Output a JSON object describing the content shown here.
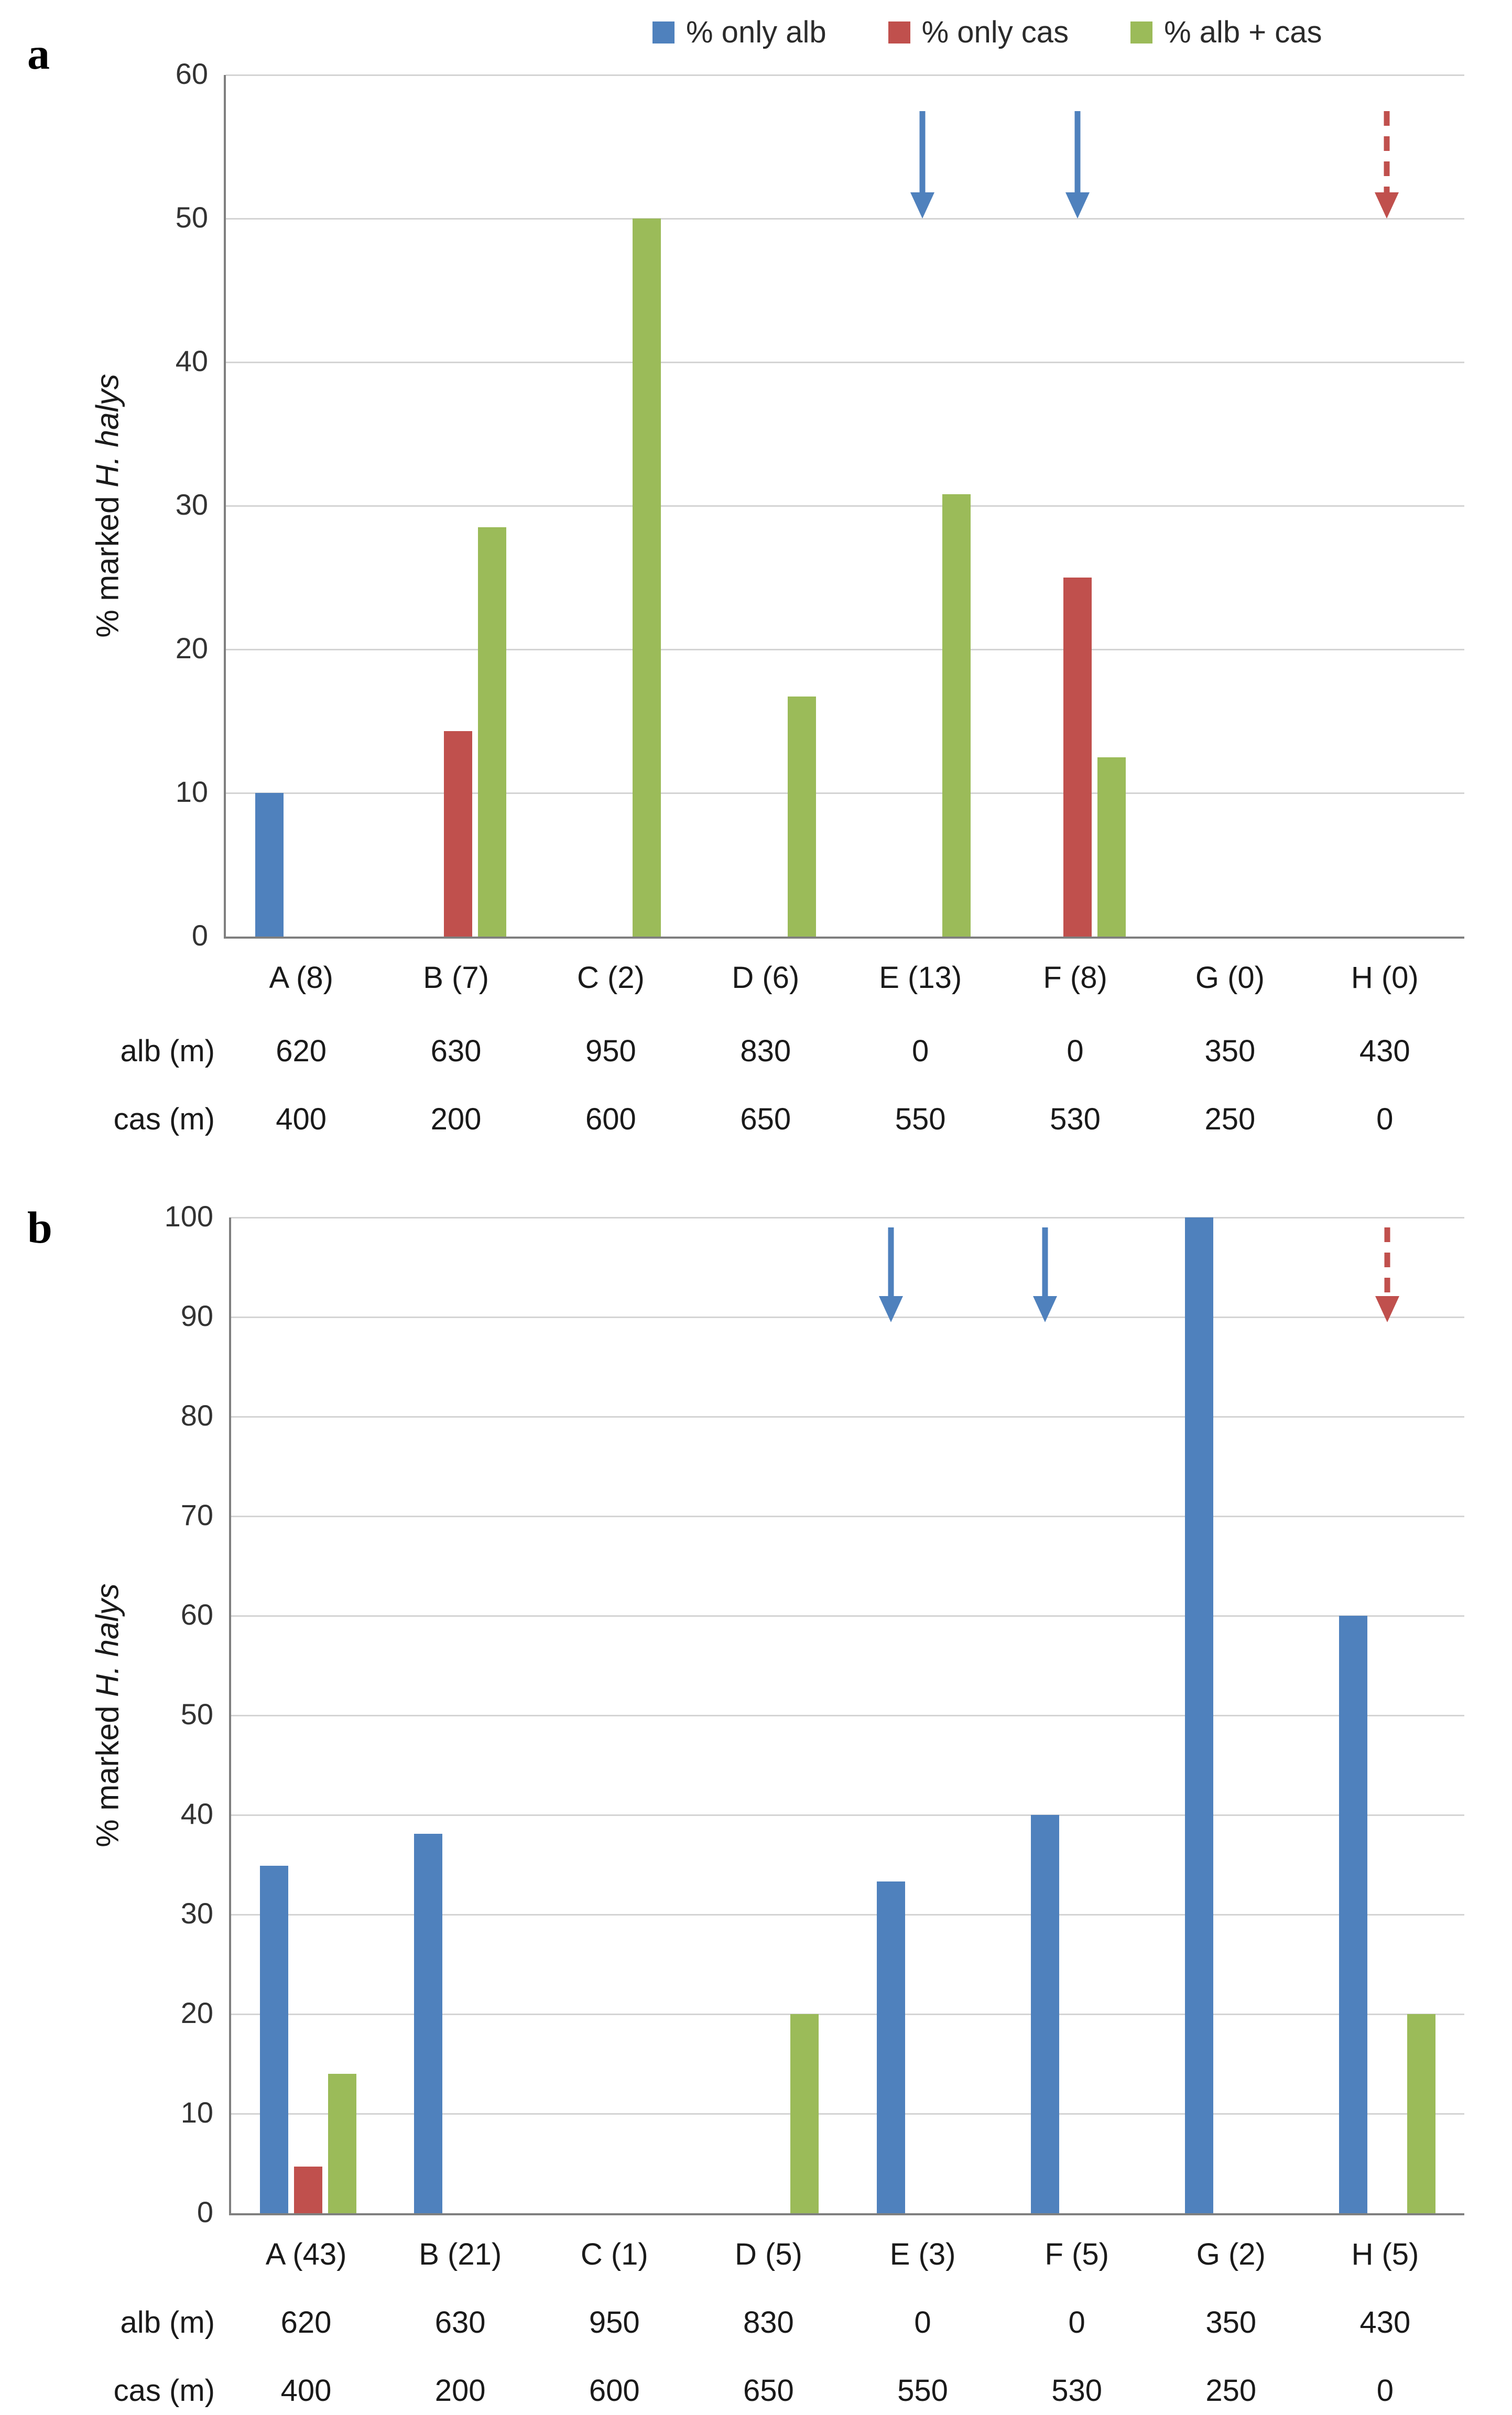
{
  "legend": [
    {
      "label": "% only alb",
      "color": "#4F81BD"
    },
    {
      "label": "% only cas",
      "color": "#C0504D"
    },
    {
      "label": "% alb + cas",
      "color": "#9BBB59"
    }
  ],
  "colors": {
    "alb": "#4F81BD",
    "cas": "#C0504D",
    "both": "#9BBB59",
    "gridline": "#d4d4d4",
    "axis": "#7f7f7f"
  },
  "ylabel_prefix": "% marked ",
  "ylabel_italic": "H. halys",
  "chart_data": [
    {
      "type": "bar",
      "panel_label": "a",
      "ylabel": "% marked H. halys",
      "ylim": [
        0,
        60
      ],
      "ytick_step": 10,
      "grid": true,
      "legend_position": "top",
      "categories": [
        "A (8)",
        "B (7)",
        "C (2)",
        "D (6)",
        "E (13)",
        "F (8)",
        "G (0)",
        "H (0)"
      ],
      "series": [
        {
          "name": "% only alb",
          "color": "#4F81BD",
          "values": [
            10,
            null,
            null,
            null,
            null,
            null,
            null,
            null
          ]
        },
        {
          "name": "% only cas",
          "color": "#C0504D",
          "values": [
            null,
            14.3,
            null,
            null,
            null,
            25,
            null,
            null
          ]
        },
        {
          "name": "% alb + cas",
          "color": "#9BBB59",
          "values": [
            null,
            28.5,
            50,
            16.7,
            30.8,
            12.5,
            null,
            null
          ]
        }
      ],
      "table": {
        "row_labels": [
          "alb (m)",
          "cas (m)"
        ],
        "rows": [
          [
            "620",
            "630",
            "950",
            "830",
            "0",
            "0",
            "350",
            "430"
          ],
          [
            "400",
            "200",
            "600",
            "650",
            "550",
            "530",
            "250",
            "0"
          ]
        ]
      },
      "arrows": [
        {
          "category_index": 4,
          "color": "#4F81BD",
          "style": "solid",
          "from": 57.5,
          "to": 50,
          "align": "center"
        },
        {
          "category_index": 5,
          "color": "#4F81BD",
          "style": "solid",
          "from": 57.5,
          "to": 50,
          "align": "center"
        },
        {
          "category_index": 7,
          "color": "#C0504D",
          "style": "dashed",
          "from": 57.5,
          "to": 50,
          "align": "center"
        }
      ]
    },
    {
      "type": "bar",
      "panel_label": "b",
      "ylabel": "% marked H. halys",
      "ylim": [
        0,
        100
      ],
      "ytick_step": 10,
      "grid": true,
      "legend_position": "none",
      "categories": [
        "A (43)",
        "B (21)",
        "C (1)",
        "D (5)",
        "E (3)",
        "F (5)",
        "G (2)",
        "H (5)"
      ],
      "series": [
        {
          "name": "% only alb",
          "color": "#4F81BD",
          "values": [
            34.9,
            38.1,
            null,
            null,
            33.3,
            40,
            100,
            60
          ]
        },
        {
          "name": "% only cas",
          "color": "#C0504D",
          "values": [
            4.7,
            null,
            null,
            null,
            null,
            null,
            null,
            null
          ]
        },
        {
          "name": "% alb + cas",
          "color": "#9BBB59",
          "values": [
            14,
            null,
            null,
            20,
            null,
            null,
            null,
            20
          ]
        }
      ],
      "table": {
        "row_labels": [
          "alb (m)",
          "cas (m)"
        ],
        "rows": [
          [
            "620",
            "630",
            "950",
            "830",
            "0",
            "0",
            "350",
            "430"
          ],
          [
            "400",
            "200",
            "600",
            "650",
            "550",
            "530",
            "250",
            "0"
          ]
        ]
      },
      "arrows": [
        {
          "category_index": 4,
          "color": "#4F81BD",
          "style": "solid",
          "from": 99,
          "to": 89.5,
          "align": "alb"
        },
        {
          "category_index": 5,
          "color": "#4F81BD",
          "style": "solid",
          "from": 99,
          "to": 89.5,
          "align": "alb"
        },
        {
          "category_index": 7,
          "color": "#C0504D",
          "style": "dashed",
          "from": 99,
          "to": 89.5,
          "align": "center"
        }
      ]
    }
  ]
}
